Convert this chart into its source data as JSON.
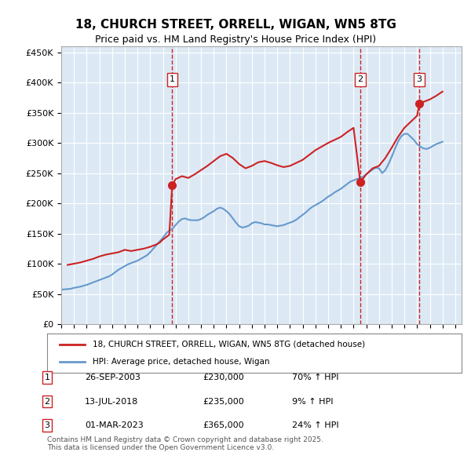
{
  "title": "18, CHURCH STREET, ORRELL, WIGAN, WN5 8TG",
  "subtitle": "Price paid vs. HM Land Registry's House Price Index (HPI)",
  "background_color": "#dce9f5",
  "plot_bg_color": "#dce9f5",
  "hpi_color": "#6699cc",
  "price_color": "#cc2222",
  "vline_color": "#cc2222",
  "ylim": [
    0,
    460000
  ],
  "yticks": [
    0,
    50000,
    100000,
    150000,
    200000,
    250000,
    300000,
    350000,
    400000,
    450000
  ],
  "xlim_start": 1995.0,
  "xlim_end": 2026.5,
  "transactions": [
    {
      "label": "1",
      "date": 2003.73,
      "price": 230000,
      "date_str": "26-SEP-2003",
      "price_str": "£230,000",
      "pct_str": "70% ↑ HPI"
    },
    {
      "label": "2",
      "date": 2018.53,
      "price": 235000,
      "date_str": "13-JUL-2018",
      "price_str": "£235,000",
      "pct_str": "9% ↑ HPI"
    },
    {
      "label": "3",
      "date": 2023.17,
      "price": 365000,
      "date_str": "01-MAR-2023",
      "price_str": "£365,000",
      "pct_str": "24% ↑ HPI"
    }
  ],
  "legend_label_price": "18, CHURCH STREET, ORRELL, WIGAN, WN5 8TG (detached house)",
  "legend_label_hpi": "HPI: Average price, detached house, Wigan",
  "footer": "Contains HM Land Registry data © Crown copyright and database right 2025.\nThis data is licensed under the Open Government Licence v3.0.",
  "hpi_data_x": [
    1995.0,
    1995.25,
    1995.5,
    1995.75,
    1996.0,
    1996.25,
    1996.5,
    1996.75,
    1997.0,
    1997.25,
    1997.5,
    1997.75,
    1998.0,
    1998.25,
    1998.5,
    1998.75,
    1999.0,
    1999.25,
    1999.5,
    1999.75,
    2000.0,
    2000.25,
    2000.5,
    2000.75,
    2001.0,
    2001.25,
    2001.5,
    2001.75,
    2002.0,
    2002.25,
    2002.5,
    2002.75,
    2003.0,
    2003.25,
    2003.5,
    2003.75,
    2004.0,
    2004.25,
    2004.5,
    2004.75,
    2005.0,
    2005.25,
    2005.5,
    2005.75,
    2006.0,
    2006.25,
    2006.5,
    2006.75,
    2007.0,
    2007.25,
    2007.5,
    2007.75,
    2008.0,
    2008.25,
    2008.5,
    2008.75,
    2009.0,
    2009.25,
    2009.5,
    2009.75,
    2010.0,
    2010.25,
    2010.5,
    2010.75,
    2011.0,
    2011.25,
    2011.5,
    2011.75,
    2012.0,
    2012.25,
    2012.5,
    2012.75,
    2013.0,
    2013.25,
    2013.5,
    2013.75,
    2014.0,
    2014.25,
    2014.5,
    2014.75,
    2015.0,
    2015.25,
    2015.5,
    2015.75,
    2016.0,
    2016.25,
    2016.5,
    2016.75,
    2017.0,
    2017.25,
    2017.5,
    2017.75,
    2018.0,
    2018.25,
    2018.5,
    2018.75,
    2019.0,
    2019.25,
    2019.5,
    2019.75,
    2020.0,
    2020.25,
    2020.5,
    2020.75,
    2021.0,
    2021.25,
    2021.5,
    2021.75,
    2022.0,
    2022.25,
    2022.5,
    2022.75,
    2023.0,
    2023.25,
    2023.5,
    2023.75,
    2024.0,
    2024.25,
    2024.5,
    2024.75,
    2025.0
  ],
  "hpi_data_y": [
    57000,
    57500,
    58000,
    58500,
    60000,
    61000,
    62000,
    63500,
    65000,
    67000,
    69000,
    71000,
    73000,
    75000,
    77000,
    79000,
    82000,
    86000,
    90000,
    93000,
    96000,
    99000,
    101000,
    103000,
    105000,
    108000,
    111000,
    114000,
    119000,
    125000,
    131000,
    137000,
    143000,
    150000,
    155000,
    158000,
    164000,
    170000,
    174000,
    175000,
    173000,
    172000,
    172000,
    172000,
    174000,
    177000,
    181000,
    184000,
    187000,
    191000,
    193000,
    191000,
    187000,
    182000,
    175000,
    168000,
    162000,
    160000,
    161000,
    163000,
    167000,
    169000,
    168000,
    167000,
    165000,
    165000,
    164000,
    163000,
    162000,
    163000,
    164000,
    166000,
    168000,
    170000,
    173000,
    177000,
    181000,
    185000,
    190000,
    194000,
    197000,
    200000,
    203000,
    207000,
    211000,
    214000,
    218000,
    221000,
    224000,
    228000,
    232000,
    236000,
    238000,
    240000,
    242000,
    244000,
    248000,
    252000,
    256000,
    259000,
    258000,
    250000,
    255000,
    265000,
    277000,
    290000,
    302000,
    311000,
    315000,
    315000,
    310000,
    305000,
    298000,
    294000,
    291000,
    290000,
    292000,
    295000,
    298000,
    300000,
    302000
  ],
  "price_data_x": [
    1995.5,
    1996.0,
    1996.5,
    1997.0,
    1997.5,
    1997.75,
    1998.0,
    1998.5,
    1999.0,
    1999.5,
    1999.75,
    2000.0,
    2000.5,
    2001.0,
    2001.5,
    2002.0,
    2002.5,
    2002.75,
    2003.0,
    2003.5,
    2003.73,
    2004.0,
    2004.5,
    2005.0,
    2005.5,
    2006.0,
    2006.5,
    2007.0,
    2007.5,
    2008.0,
    2008.5,
    2009.0,
    2009.5,
    2010.0,
    2010.5,
    2011.0,
    2011.5,
    2012.0,
    2012.5,
    2013.0,
    2013.5,
    2014.0,
    2014.5,
    2015.0,
    2015.5,
    2016.0,
    2016.5,
    2017.0,
    2017.5,
    2018.0,
    2018.53,
    2019.0,
    2019.5,
    2020.0,
    2020.5,
    2021.0,
    2021.5,
    2022.0,
    2022.5,
    2023.0,
    2023.17,
    2023.5,
    2024.0,
    2024.5,
    2025.0
  ],
  "price_data_y": [
    98000,
    100000,
    102000,
    105000,
    108000,
    110000,
    112000,
    115000,
    117000,
    119000,
    121000,
    123000,
    121000,
    123000,
    125000,
    128000,
    132000,
    135000,
    140000,
    148000,
    230000,
    240000,
    245000,
    242000,
    248000,
    255000,
    262000,
    270000,
    278000,
    282000,
    275000,
    265000,
    258000,
    262000,
    268000,
    270000,
    267000,
    263000,
    260000,
    262000,
    267000,
    272000,
    280000,
    288000,
    294000,
    300000,
    305000,
    310000,
    318000,
    325000,
    235000,
    248000,
    258000,
    262000,
    275000,
    292000,
    310000,
    325000,
    335000,
    345000,
    365000,
    368000,
    372000,
    378000,
    385000
  ]
}
